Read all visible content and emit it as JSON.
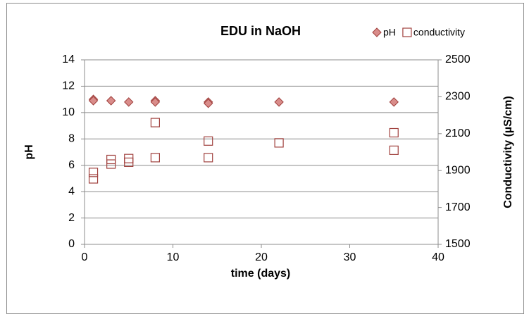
{
  "chart_data": {
    "type": "scatter",
    "title": "EDU in NaOH",
    "x_label": "time (days)",
    "y_label": "pH",
    "y2_label": "Conductivity (µS/cm)",
    "xlim": [
      0,
      40
    ],
    "xticks": [
      0,
      10,
      20,
      30,
      40
    ],
    "ylim": [
      0,
      14
    ],
    "yticks": [
      0,
      2,
      4,
      6,
      8,
      10,
      12,
      14
    ],
    "y2lim": [
      1500,
      2500
    ],
    "y2ticks": [
      1500,
      1700,
      1900,
      2100,
      2300,
      2500
    ],
    "grid": true,
    "legend": "top-right",
    "series": [
      {
        "name": "pH",
        "marker": "diamond",
        "color": "#d98c8a",
        "axis": "y",
        "x": [
          1,
          1,
          3,
          5,
          8,
          8,
          14,
          14,
          22,
          35
        ],
        "values": [
          11.0,
          10.9,
          10.9,
          10.8,
          10.9,
          10.8,
          10.8,
          10.7,
          10.8,
          10.8
        ]
      },
      {
        "name": "conductivity",
        "marker": "square",
        "color": "#a0403d",
        "axis": "y2",
        "x": [
          1,
          1,
          3,
          3,
          5,
          5,
          8,
          8,
          14,
          14,
          22,
          35,
          35
        ],
        "values": [
          1890,
          1855,
          1960,
          1935,
          1965,
          1945,
          2160,
          1970,
          2060,
          1970,
          2050,
          2105,
          2010
        ]
      }
    ]
  }
}
